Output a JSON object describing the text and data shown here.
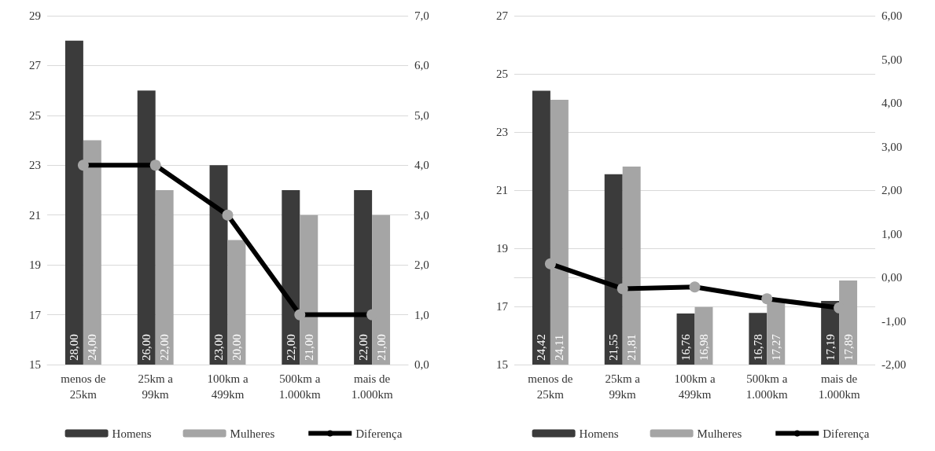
{
  "chart_data": [
    {
      "type": "bar",
      "categories": [
        "menos de 25km",
        "25km a 99km",
        "100km a 499km",
        "500km a 1.000km",
        "mais de 1.000km"
      ],
      "series": [
        {
          "name": "Homens",
          "color": "#3b3b3b",
          "values": [
            28,
            26,
            23,
            22,
            22
          ],
          "value_labels": [
            "28,00",
            "26,00",
            "23,00",
            "22,00",
            "22,00"
          ]
        },
        {
          "name": "Mulheres",
          "color": "#a5a5a5",
          "values": [
            24,
            22,
            20,
            21,
            21
          ],
          "value_labels": [
            "24,00",
            "22,00",
            "20,00",
            "21,00",
            "21,00"
          ]
        },
        {
          "name": "Diferença",
          "type": "line",
          "axis": "y2",
          "color": "#000000",
          "values": [
            4,
            4,
            3,
            1,
            1
          ]
        }
      ],
      "ylim": [
        15,
        29
      ],
      "yticks": [
        15,
        17,
        19,
        21,
        23,
        25,
        27,
        29
      ],
      "y2lim": [
        0,
        7
      ],
      "y2ticks": [
        {
          "value": 0,
          "label": "0,0"
        },
        {
          "value": 1,
          "label": "1,0"
        },
        {
          "value": 2,
          "label": "2,0"
        },
        {
          "value": 3,
          "label": "3,0"
        },
        {
          "value": 4,
          "label": "4,0"
        },
        {
          "value": 5,
          "label": "5,0"
        },
        {
          "value": 6,
          "label": "6,0"
        },
        {
          "value": 7,
          "label": "7,0"
        }
      ],
      "grid": "y",
      "legend": "bottom",
      "marker": "circle"
    },
    {
      "type": "bar",
      "categories": [
        "menos de 25km",
        "25km a 99km",
        "100km a 499km",
        "500km a 1.000km",
        "mais de 1.000km"
      ],
      "series": [
        {
          "name": "Homens",
          "color": "#3b3b3b",
          "values": [
            24.42,
            21.55,
            16.76,
            16.78,
            17.19
          ],
          "value_labels": [
            "24,42",
            "21,55",
            "16,76",
            "16,78",
            "17,19"
          ]
        },
        {
          "name": "Mulheres",
          "color": "#a5a5a5",
          "values": [
            24.11,
            21.81,
            16.98,
            17.27,
            17.89
          ],
          "value_labels": [
            "24,11",
            "21,81",
            "16,98",
            "17,27",
            "17,89"
          ]
        },
        {
          "name": "Diferença",
          "type": "line",
          "axis": "y2",
          "color": "#000000",
          "values": [
            0.31,
            -0.26,
            -0.22,
            -0.49,
            -0.7
          ]
        }
      ],
      "ylim": [
        15,
        27
      ],
      "yticks": [
        15,
        17,
        19,
        21,
        23,
        25,
        27
      ],
      "y2lim": [
        -2,
        6
      ],
      "y2ticks": [
        {
          "value": -2,
          "label": "-2,00"
        },
        {
          "value": -1,
          "label": "-1,00"
        },
        {
          "value": 0,
          "label": "0,00"
        },
        {
          "value": 1,
          "label": "1,00"
        },
        {
          "value": 2,
          "label": "2,00"
        },
        {
          "value": 3,
          "label": "3,00"
        },
        {
          "value": 4,
          "label": "4,00"
        },
        {
          "value": 5,
          "label": "5,00"
        },
        {
          "value": 6,
          "label": "6,00"
        }
      ],
      "grid": "y",
      "legend": "bottom",
      "marker": "circle"
    }
  ]
}
